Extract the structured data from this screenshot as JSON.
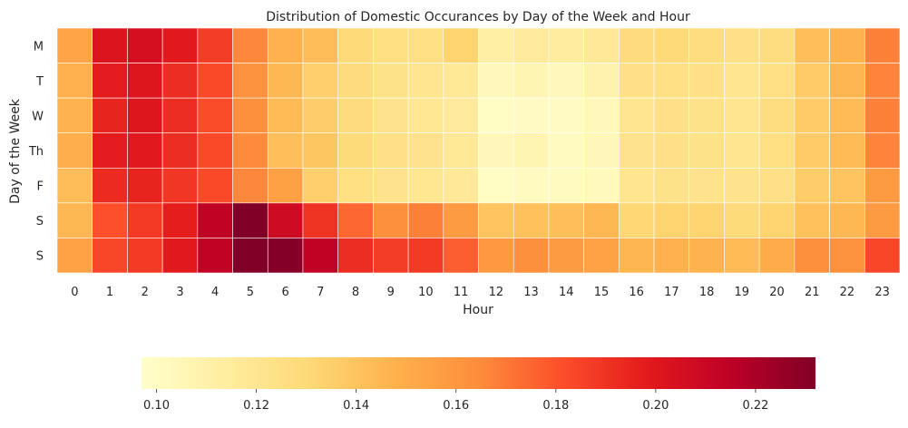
{
  "chart_data": {
    "type": "heatmap",
    "title": "Distribution of Domestic Occurances by Day of the Week and Hour",
    "xlabel": "Hour",
    "ylabel": "Day of the Week",
    "x_categories": [
      "0",
      "1",
      "2",
      "3",
      "4",
      "5",
      "6",
      "7",
      "8",
      "9",
      "10",
      "11",
      "12",
      "13",
      "14",
      "15",
      "16",
      "17",
      "18",
      "19",
      "20",
      "21",
      "22",
      "23"
    ],
    "y_categories": [
      "M",
      "T",
      "W",
      "Th",
      "F",
      "S",
      "S"
    ],
    "values": [
      [
        0.153,
        0.202,
        0.205,
        0.199,
        0.187,
        0.166,
        0.148,
        0.143,
        0.13,
        0.126,
        0.125,
        0.133,
        0.112,
        0.116,
        0.115,
        0.117,
        0.128,
        0.13,
        0.127,
        0.124,
        0.127,
        0.142,
        0.147,
        0.168
      ],
      [
        0.148,
        0.198,
        0.201,
        0.192,
        0.183,
        0.162,
        0.145,
        0.135,
        0.128,
        0.123,
        0.121,
        0.118,
        0.104,
        0.107,
        0.104,
        0.108,
        0.124,
        0.125,
        0.124,
        0.121,
        0.125,
        0.137,
        0.146,
        0.167
      ],
      [
        0.147,
        0.195,
        0.201,
        0.192,
        0.182,
        0.163,
        0.144,
        0.136,
        0.128,
        0.122,
        0.119,
        0.116,
        0.1,
        0.101,
        0.101,
        0.104,
        0.121,
        0.124,
        0.123,
        0.121,
        0.127,
        0.137,
        0.144,
        0.168
      ],
      [
        0.149,
        0.198,
        0.199,
        0.192,
        0.183,
        0.165,
        0.142,
        0.139,
        0.129,
        0.124,
        0.122,
        0.118,
        0.105,
        0.107,
        0.102,
        0.105,
        0.122,
        0.124,
        0.123,
        0.121,
        0.126,
        0.137,
        0.144,
        0.167
      ],
      [
        0.143,
        0.193,
        0.195,
        0.189,
        0.183,
        0.166,
        0.156,
        0.135,
        0.126,
        0.122,
        0.12,
        0.117,
        0.1,
        0.102,
        0.102,
        0.103,
        0.121,
        0.123,
        0.122,
        0.122,
        0.124,
        0.136,
        0.14,
        0.158
      ],
      [
        0.145,
        0.181,
        0.188,
        0.197,
        0.214,
        0.232,
        0.208,
        0.19,
        0.175,
        0.163,
        0.168,
        0.158,
        0.14,
        0.141,
        0.142,
        0.145,
        0.131,
        0.133,
        0.133,
        0.129,
        0.133,
        0.141,
        0.145,
        0.158
      ],
      [
        0.155,
        0.184,
        0.188,
        0.199,
        0.214,
        0.232,
        0.231,
        0.214,
        0.192,
        0.187,
        0.188,
        0.177,
        0.159,
        0.163,
        0.158,
        0.155,
        0.146,
        0.148,
        0.147,
        0.144,
        0.151,
        0.163,
        0.162,
        0.184
      ]
    ],
    "colormap": "YlOrRd",
    "vmin": 0.097,
    "vmax": 0.232,
    "colorbar": {
      "orientation": "horizontal",
      "ticks": [
        0.1,
        0.12,
        0.14,
        0.16,
        0.18,
        0.2,
        0.22
      ],
      "tick_labels": [
        "0.10",
        "0.12",
        "0.14",
        "0.16",
        "0.18",
        "0.20",
        "0.22"
      ]
    },
    "grid_lines_color": "#ffffff",
    "legend": "none"
  }
}
